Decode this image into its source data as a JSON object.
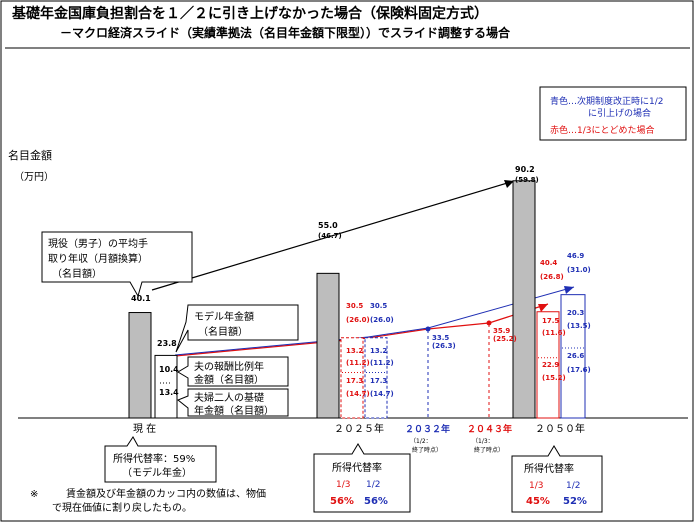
{
  "title": "基礎年金国庫負担割合を１／２に引き上げなかった場合（保険料固定方式）",
  "subtitle": "－マクロ経済スライド（実績準拠法（名目年金額下限型））でスライド調整する場合",
  "y_axis": {
    "label_line1": "名目金額",
    "label_line2": "（万円）"
  },
  "legend": {
    "blue_line1": "青色…次期制度改正時に1/2",
    "blue_line2": "に引上げの場合",
    "red": "赤色…1/3にとどめた場合",
    "blue_color": "#1f2fb4",
    "red_color": "#e01010"
  },
  "colors": {
    "income_bar": "#bdbdbd",
    "blue": "#1f2fb4",
    "red": "#e01010"
  },
  "callouts": {
    "income": [
      "現役（男子）の平均手",
      "取り年収（月額換算）",
      "（名目額）"
    ],
    "model": [
      "モデル年金額",
      "（名目額）"
    ],
    "earnings": [
      "夫の報酬比例年",
      "金額（名目額）"
    ],
    "basic": [
      "夫婦二人の基礎",
      "年金額（名目額）"
    ]
  },
  "periods": {
    "now": "現 在",
    "y2025": "２０２５年",
    "y2032": "２０３２年",
    "y2032_sub1": "（1/2：",
    "y2032_sub2": "終了時点）",
    "y2043": "２０４３年",
    "y2043_sub1": "（1/3：",
    "y2043_sub2": "終了時点）",
    "y2050": "２０５０年"
  },
  "replacement": {
    "now": {
      "line1": "所得代替率：59%",
      "line2": "（モデル年金）"
    },
    "y2025": {
      "title": "所得代替率",
      "col1": "1/3",
      "col2": "1/2",
      "val1": "56%",
      "val2": "56%"
    },
    "y2050": {
      "title": "所得代替率",
      "col1": "1/3",
      "col2": "1/2",
      "val1": "45%",
      "val2": "52%"
    }
  },
  "footnote": {
    "mark": "※",
    "line1": "賃金額及び年金額のカッコ内の数値は、物価",
    "line2": "で現在価値に割り戻したもの。"
  },
  "chart_data": {
    "type": "bar",
    "unit": "万円",
    "ylim": [
      0,
      95
    ],
    "income": [
      {
        "period": "現在",
        "value": 40.1,
        "label": "40.1"
      },
      {
        "period": "2025年",
        "value": 55.0,
        "label": "55.0",
        "real_label": "(46.7)"
      },
      {
        "period": "2050年",
        "value": 90.2,
        "label": "90.2",
        "real_label": "(59.8)"
      }
    ],
    "pension_now": {
      "total": 23.8,
      "earnings": 10.4,
      "basic": 13.4,
      "labels": [
        "23.8",
        "10.4",
        "13.4"
      ]
    },
    "pension_2025": {
      "red": {
        "total": 30.5,
        "earnings": 13.2,
        "basic": 17.3,
        "labels": [
          "30.5",
          "(26.0)",
          "13.2",
          "(11.2)",
          "17.3",
          "(14.7)"
        ]
      },
      "blue": {
        "total": 30.5,
        "earnings": 13.2,
        "basic": 17.3,
        "labels": [
          "30.5",
          "(26.0)",
          "13.2",
          "(11.2)",
          "17.3",
          "(14.7)"
        ]
      }
    },
    "pension_2050": {
      "red": {
        "total": 40.4,
        "earnings": 17.5,
        "basic": 22.9,
        "labels": [
          "40.4",
          "(26.8)",
          "17.5",
          "(11.6)",
          "22.9",
          "(15.2)"
        ]
      },
      "blue": {
        "total": 46.9,
        "earnings": 20.3,
        "basic": 26.6,
        "labels": [
          "46.9",
          "(31.0)",
          "20.3",
          "(13.5)",
          "26.6",
          "(17.6)"
        ]
      }
    },
    "points": [
      {
        "period": "2032年",
        "series": "blue",
        "value": 33.5,
        "labels": [
          "33.5",
          "(26.3)"
        ]
      },
      {
        "period": "2043年",
        "series": "red",
        "value": 35.9,
        "labels": [
          "35.9",
          "(25.2)"
        ]
      }
    ]
  }
}
